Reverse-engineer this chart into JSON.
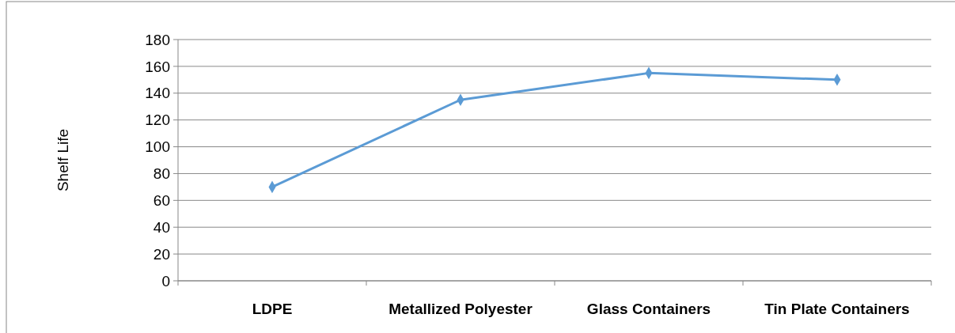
{
  "chart_data": {
    "type": "line",
    "ylabel": "Shelf Life",
    "categories": [
      "LDPE",
      "Metallized Polyester",
      "Glass Containers",
      "Tin Plate Containers"
    ],
    "series": [
      {
        "color": "#5b9bd5",
        "values": [
          70,
          135,
          155,
          150
        ]
      }
    ],
    "ylim": [
      0,
      180
    ],
    "yticks": [
      0,
      20,
      40,
      60,
      80,
      100,
      120,
      140,
      160,
      180
    ],
    "grid": "y",
    "marker": "diamond",
    "line_style": "solid"
  }
}
